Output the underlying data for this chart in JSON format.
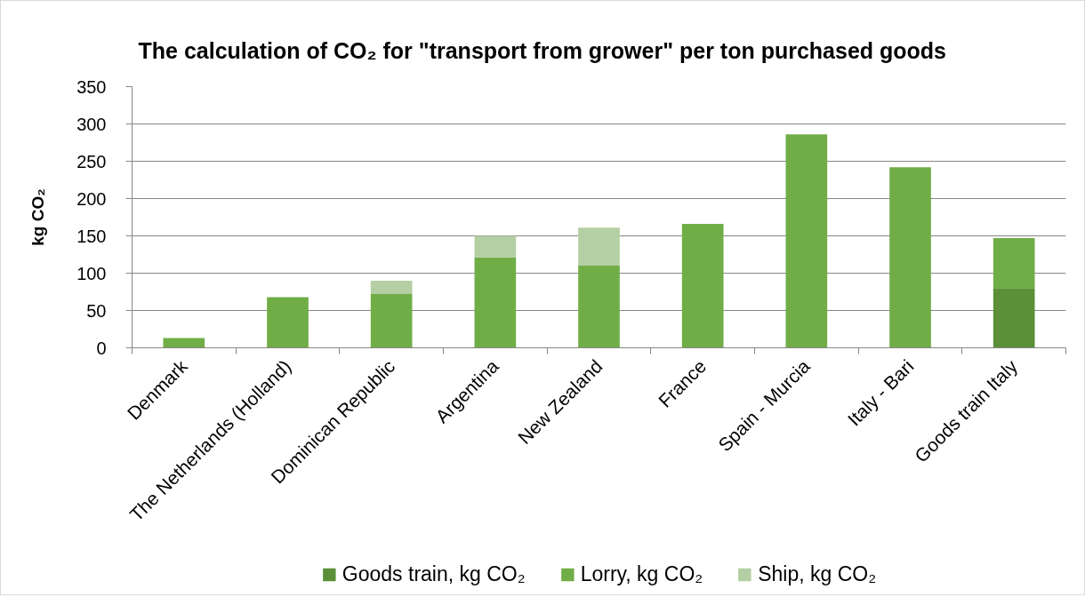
{
  "chart_data": {
    "type": "bar",
    "title": "The calculation of CO₂ for \"transport from grower\" per ton purchased goods",
    "ylabel": "kg CO₂",
    "categories": [
      "Denmark",
      "The Netherlands (Holland)",
      "Dominican Republic",
      "Argentina",
      "New Zealand",
      "France",
      "Spain - Murcia",
      "Italy - Bari",
      "Goods train Italy"
    ],
    "series": [
      {
        "name": "Goods train, kg CO₂",
        "color": "#5b9038",
        "values": [
          null,
          null,
          null,
          null,
          null,
          null,
          null,
          null,
          80
        ]
      },
      {
        "name": "Lorry, kg CO₂",
        "color": "#70ad47",
        "values": [
          13,
          68,
          72,
          121,
          110,
          166,
          286,
          242,
          67
        ]
      },
      {
        "name": "Ship, kg CO₂",
        "color": "#b4cfa3",
        "values": [
          null,
          null,
          18,
          29,
          51,
          null,
          null,
          null,
          null
        ]
      }
    ],
    "stacked": true,
    "ylim": [
      0,
      350
    ],
    "yticks": [
      0,
      50,
      100,
      150,
      200,
      250,
      300,
      350
    ],
    "grid": "y",
    "legend": "bottom"
  }
}
